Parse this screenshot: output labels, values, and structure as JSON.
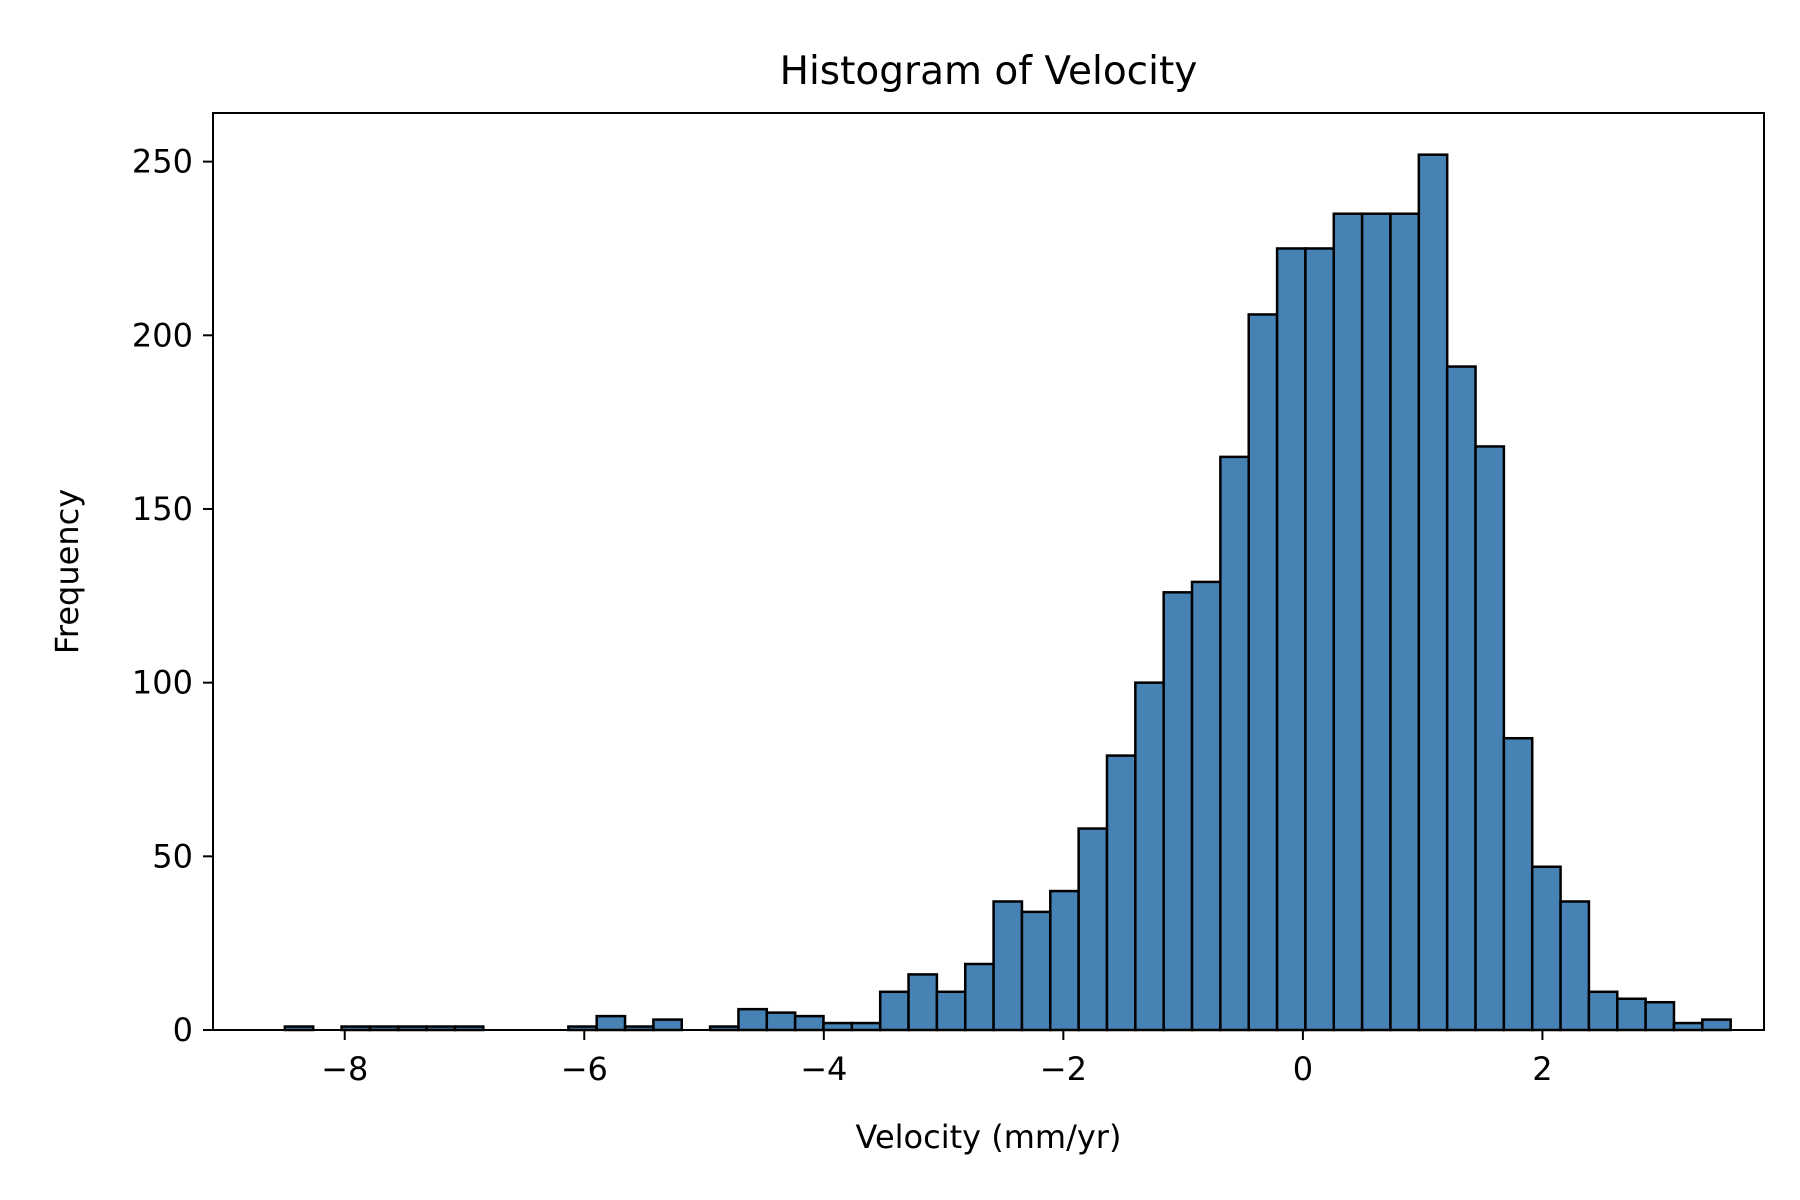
{
  "chart_data": {
    "type": "bar",
    "title": "Histogram of Velocity",
    "xlabel": "Velocity (mm/yr)",
    "ylabel": "Frequency",
    "xlim": [
      -9.1,
      3.85
    ],
    "ylim": [
      0,
      264
    ],
    "xticks": [
      -8,
      -6,
      -4,
      -2,
      0,
      2
    ],
    "xtick_labels": [
      "−8",
      "−6",
      "−4",
      "−2",
      "0",
      "2"
    ],
    "yticks": [
      0,
      50,
      100,
      150,
      200,
      250
    ],
    "ytick_labels": [
      "0",
      "50",
      "100",
      "150",
      "200",
      "250"
    ],
    "bin_start": -8.5,
    "bin_width": 0.2367,
    "values": [
      1,
      0,
      1,
      1,
      1,
      1,
      1,
      0,
      0,
      0,
      1,
      4,
      1,
      3,
      0,
      1,
      6,
      5,
      4,
      2,
      2,
      11,
      16,
      11,
      19,
      37,
      34,
      40,
      58,
      79,
      100,
      126,
      129,
      165,
      206,
      225,
      225,
      235,
      235,
      235,
      252,
      191,
      168,
      84,
      47,
      37,
      11,
      9,
      8,
      2,
      3
    ],
    "grid": false,
    "legend": "none",
    "colors": {
      "bar_fill": "#4682b4",
      "bar_edge": "#000000",
      "axes": "#000000"
    }
  }
}
